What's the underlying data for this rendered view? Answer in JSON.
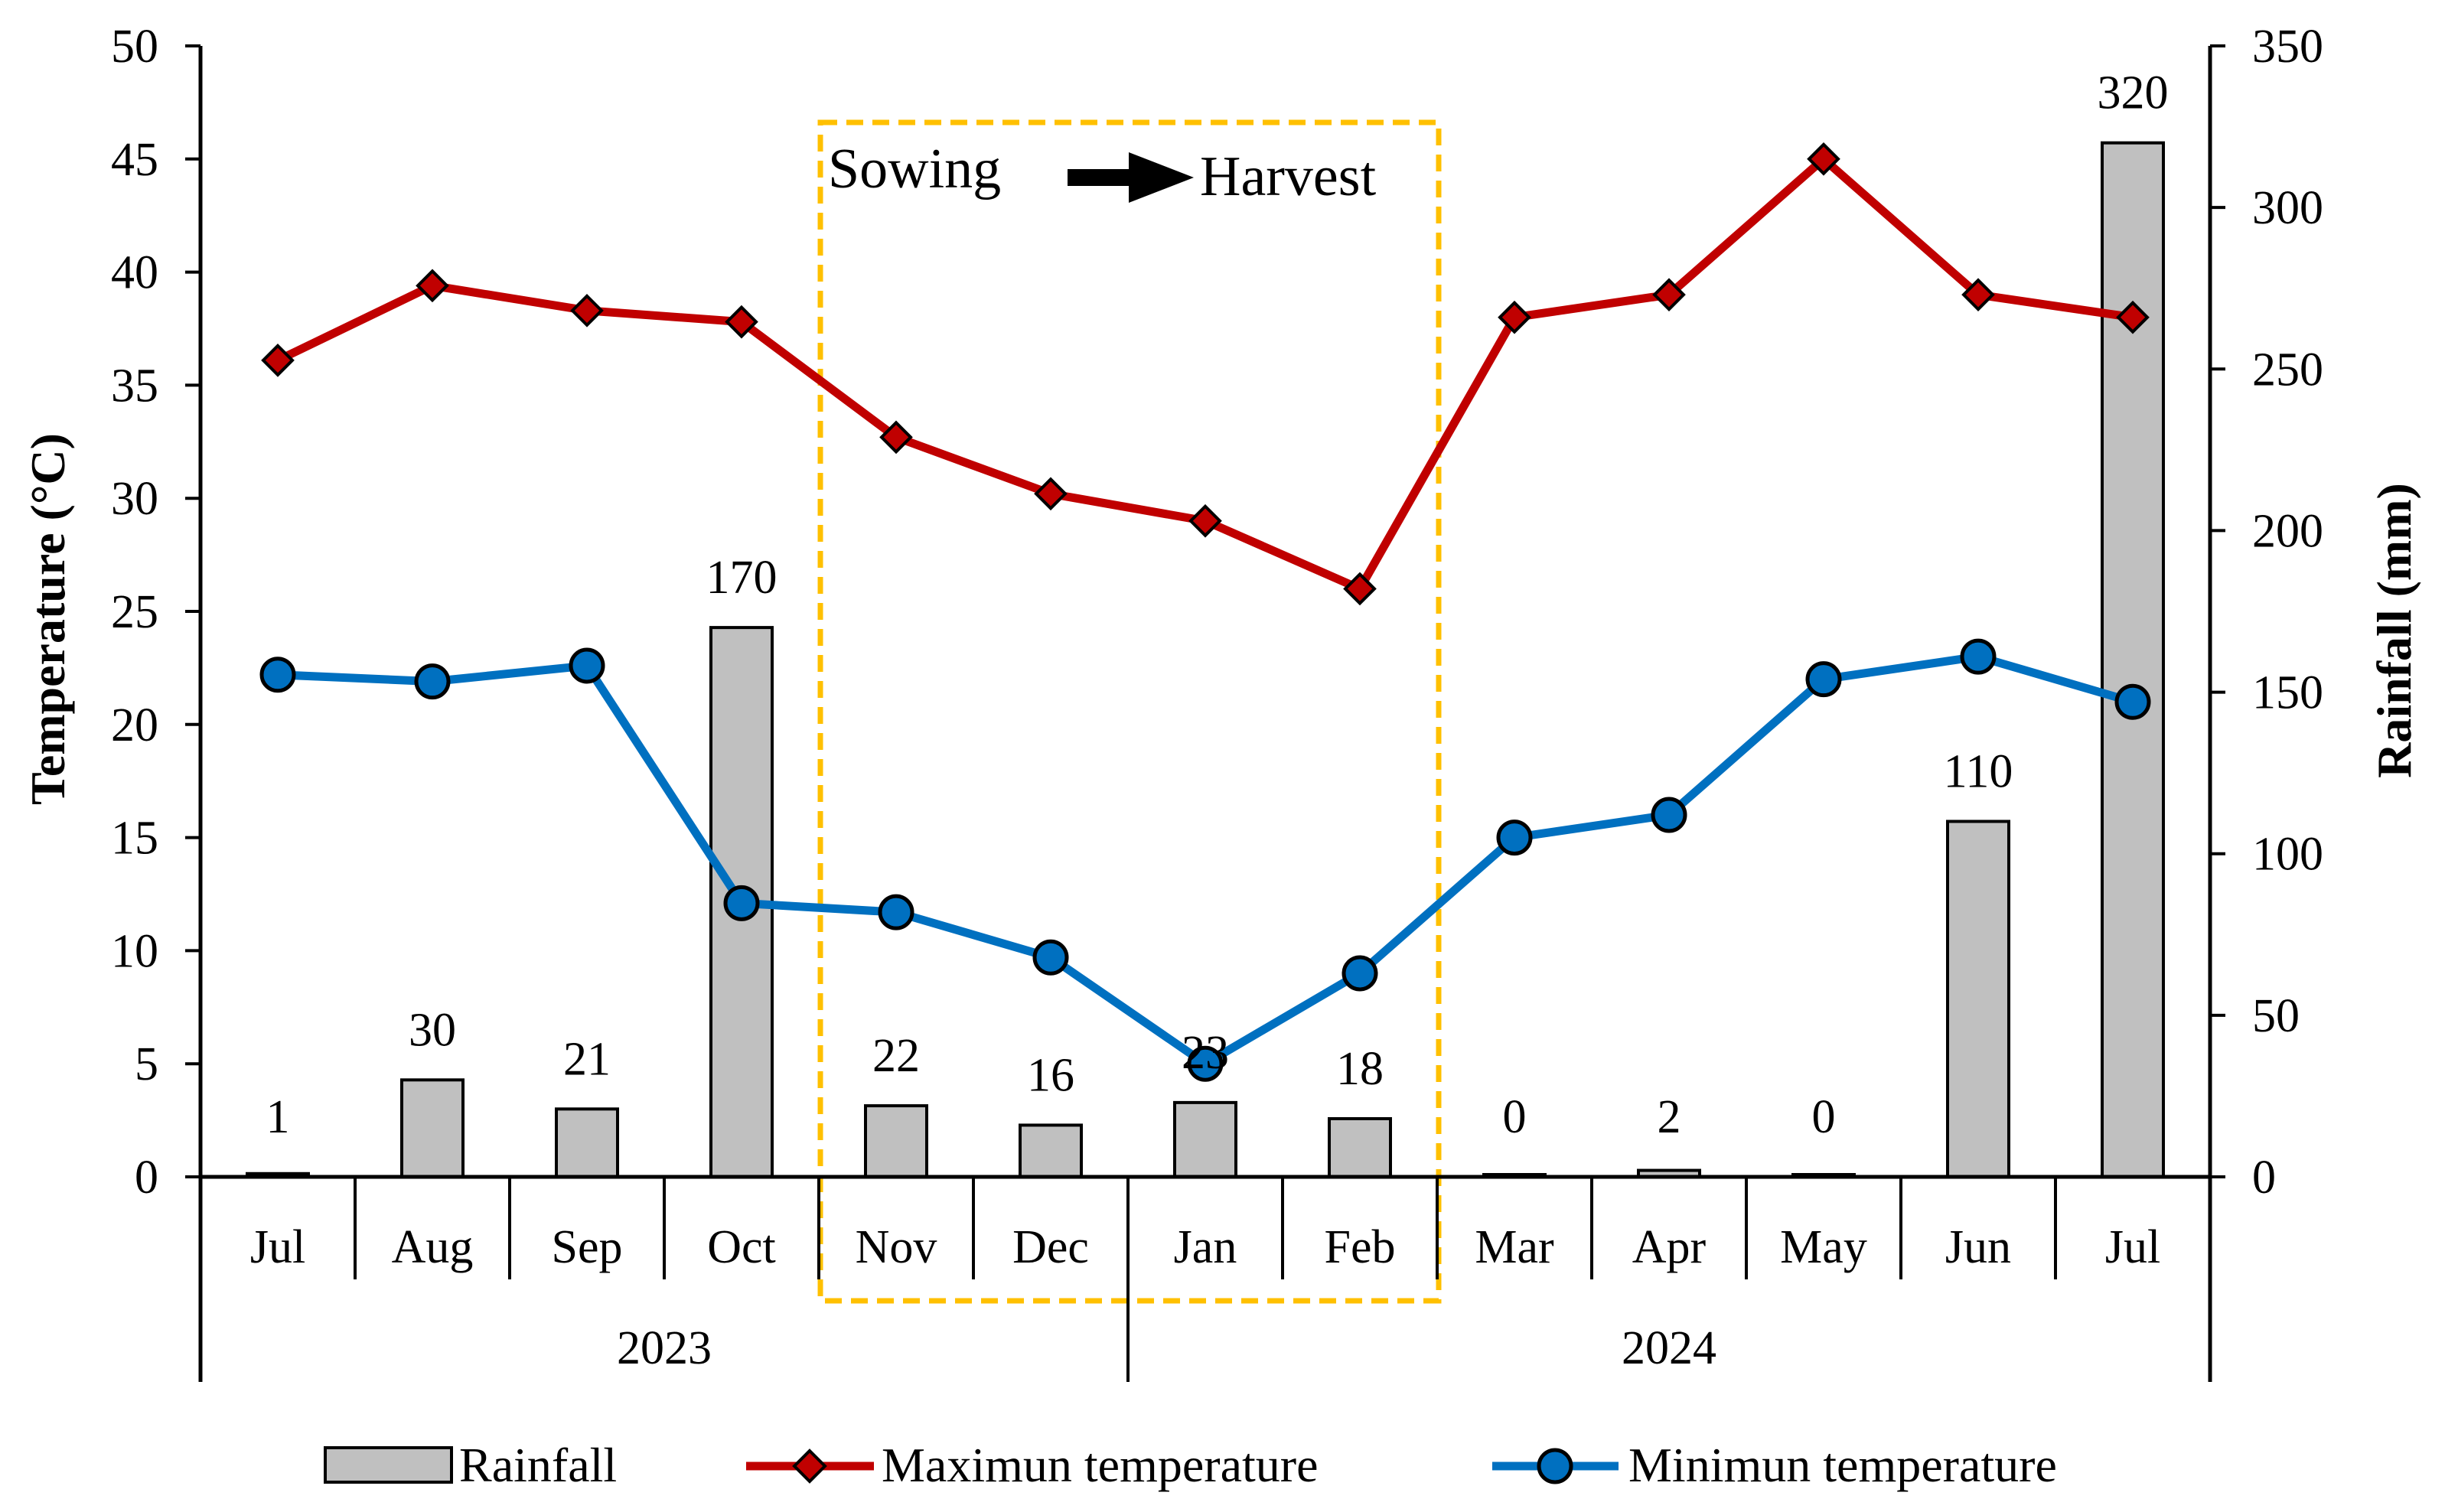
{
  "colors": {
    "bar_fill": "#c0c0c0",
    "bar_stroke": "#000000",
    "max_line": "#c00000",
    "max_marker": "#c00000",
    "min_line": "#0070c0",
    "min_marker": "#0070c0",
    "highlight_box": "#ffc000"
  },
  "chart_data": {
    "type": "bar+line",
    "categories": [
      "Jul",
      "Aug",
      "Sep",
      "Oct",
      "Nov",
      "Dec",
      "Jan",
      "Feb",
      "Mar",
      "Apr",
      "May",
      "Jun",
      "Jul"
    ],
    "year_groups": [
      {
        "label": "2023",
        "start": 0,
        "end": 5
      },
      {
        "label": "2024",
        "start": 6,
        "end": 12
      }
    ],
    "series": [
      {
        "name": "Rainfall",
        "kind": "bar",
        "axis": "right",
        "values": [
          1,
          30,
          21,
          170,
          22,
          16,
          23,
          18,
          0,
          2,
          0,
          110,
          320
        ],
        "labels": [
          "1",
          "30",
          "21",
          "170",
          "22",
          "16",
          "23",
          "18",
          "0",
          "2",
          "0",
          "110",
          "320"
        ]
      },
      {
        "name": "Maximun temperature",
        "kind": "line",
        "marker": "diamond",
        "axis": "left",
        "values": [
          36.1,
          39.4,
          38.3,
          37.8,
          32.7,
          30.2,
          29.0,
          26.0,
          38.0,
          39.0,
          45.0,
          39.0,
          38.0
        ]
      },
      {
        "name": "Minimun temperature",
        "kind": "line",
        "marker": "circle",
        "axis": "left",
        "values": [
          22.2,
          21.9,
          22.6,
          12.1,
          11.7,
          9.7,
          5.0,
          9.0,
          15.0,
          16.0,
          22.0,
          23.0,
          21.0
        ]
      }
    ],
    "left_axis": {
      "label": "Temperature (°C)",
      "min": 0,
      "max": 50,
      "step": 5,
      "ticks": [
        "0",
        "5",
        "10",
        "15",
        "20",
        "25",
        "30",
        "35",
        "40",
        "45",
        "50"
      ]
    },
    "right_axis": {
      "label": "Rainfall (mm)",
      "min": 0,
      "max": 350,
      "step": 50,
      "ticks": [
        "0",
        "50",
        "100",
        "150",
        "200",
        "250",
        "300",
        "350"
      ]
    },
    "highlight": {
      "from": 4,
      "to": 7,
      "start_label": "Sowing",
      "end_label": "Harvest"
    },
    "legend": [
      "Rainfall",
      "Maximun temperature",
      "Minimun temperature"
    ],
    "legend_position": "bottom",
    "grid": false
  }
}
